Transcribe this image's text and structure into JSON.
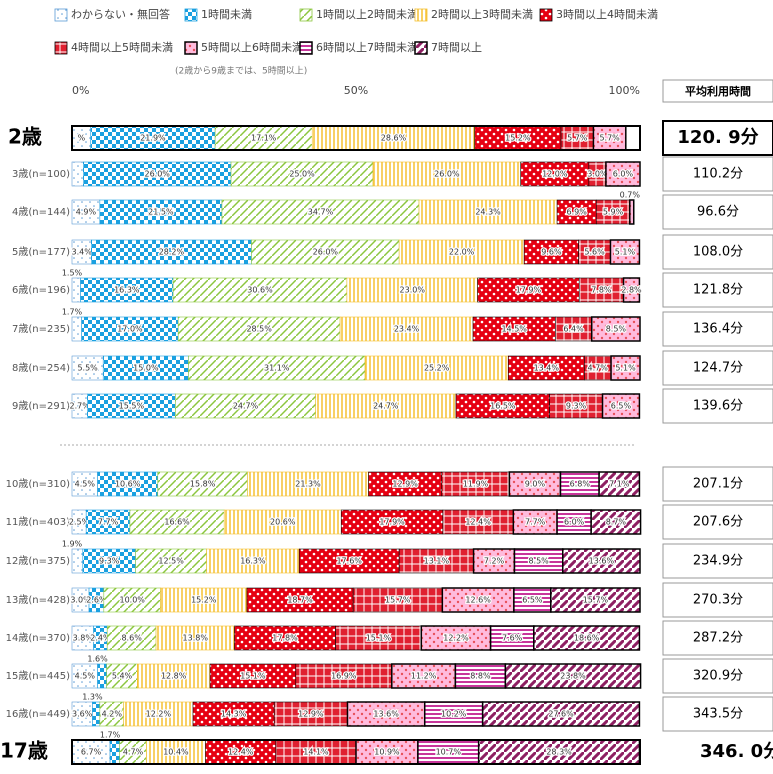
{
  "chart_data": {
    "type": "bar",
    "orientation": "horizontal",
    "stacked": true,
    "legend": [
      "わからない・無回答",
      "1時間未満",
      "1時間以上2時間未満",
      "2時間以上3時間未満",
      "3時間以上4時間未満",
      "4時間以上5時間未満",
      "5時間以上6時間未満",
      "6時間以上7時間未満",
      "7時間以上"
    ],
    "legend_note": "(2歳から9歳までは、5時間以上)",
    "xlim": [
      0,
      100
    ],
    "xticks": [
      {
        "value": 0,
        "label": "0%"
      },
      {
        "value": 50,
        "label": "50%"
      },
      {
        "value": 100,
        "label": "100%"
      }
    ],
    "average_header": "平均利用時間",
    "categories": [
      "2歳",
      "3歳(n=100)",
      "4歳(n=144)",
      "5歳(n=177)",
      "6歳(n=196)",
      "7歳(n=235)",
      "8歳(n=254)",
      "9歳(n=291)",
      "10歳(n=310)",
      "11歳(n=403)",
      "12歳(n=375)",
      "13歳(n=428)",
      "14歳(n=370)",
      "15歳(n=445)",
      "16歳(n=449)",
      "17歳"
    ],
    "averages": [
      "120. 9分",
      "110.2分",
      "96.6分",
      "108.0分",
      "121.8分",
      "136.4分",
      "124.7分",
      "139.6分",
      "207.1分",
      "207.6分",
      "234.9分",
      "270.3分",
      "287.2分",
      "320.9分",
      "343.5分",
      "346. 0分"
    ],
    "series": [
      {
        "name": "わからない・無回答",
        "color": "#5b9bd5",
        "values": [
          3.3,
          2.0,
          4.9,
          3.4,
          1.5,
          1.7,
          5.5,
          2.7,
          4.5,
          2.5,
          1.9,
          3.0,
          3.8,
          4.5,
          3.6,
          6.7
        ],
        "value_labels": [
          "%",
          null,
          "4.9%",
          "3.4%",
          "1.5%",
          "1.7%",
          "5.5%",
          "2.7%",
          "4.5%",
          "2.5%",
          "1.9%",
          "3.0%",
          "3.8%",
          "4.5%",
          "3.6%",
          "6.7%"
        ]
      },
      {
        "name": "1時間未満",
        "color": "#1aa0e0",
        "values": [
          21.9,
          26.0,
          21.5,
          28.2,
          16.3,
          17.0,
          15.0,
          15.5,
          10.6,
          7.7,
          9.3,
          2.6,
          2.4,
          1.6,
          1.3,
          1.7
        ],
        "value_labels": [
          "21.9%",
          "26.0%",
          "21.5%",
          "28.2%",
          "16.3%",
          "17.0%",
          "15.0%",
          "15.5%",
          "10.6%",
          "7.7%",
          "9.3%",
          "2.6%",
          "2.4%",
          "1.6%",
          "1.3%",
          "1.7%"
        ]
      },
      {
        "name": "1時間以上2時間未満",
        "color": "#8cc63f",
        "values": [
          17.1,
          25.0,
          34.7,
          26.0,
          30.6,
          28.5,
          31.1,
          24.7,
          15.8,
          16.6,
          12.5,
          10.0,
          8.6,
          5.4,
          4.2,
          4.7
        ],
        "value_labels": [
          "17.1%",
          "25.0%",
          "34.7%",
          "26.0%",
          "30.6%",
          "28.5%",
          "31.1%",
          "24.7%",
          "15.8%",
          "16.6%",
          "12.5%",
          "10.0%",
          "8.6%",
          "5.4%",
          "4.2%",
          "4.7%"
        ]
      },
      {
        "name": "2時間以上3時間未満",
        "color": "#f5c030",
        "values": [
          28.6,
          26.0,
          24.3,
          22.0,
          23.0,
          23.4,
          25.2,
          24.7,
          21.3,
          20.6,
          16.3,
          15.2,
          13.8,
          12.8,
          12.2,
          10.4
        ],
        "value_labels": [
          "28.6%",
          "26.0%",
          "24.3%",
          "22.0%",
          "23.0%",
          "23.4%",
          "25.2%",
          "24.7%",
          "21.3%",
          "20.6%",
          "16.3%",
          "15.2%",
          "13.8%",
          "12.8%",
          "12.2%",
          "10.4%"
        ]
      },
      {
        "name": "3時間以上4時間未満",
        "color": "#e60012",
        "values": [
          15.2,
          12.0,
          6.9,
          9.6,
          17.9,
          14.5,
          13.4,
          16.5,
          12.9,
          17.9,
          17.6,
          18.7,
          17.8,
          15.1,
          14.3,
          12.4
        ],
        "value_labels": [
          "15.2%",
          "12.0%",
          "6.9%",
          "9.6%",
          "17.9%",
          "14.5%",
          "13.4%",
          "16.5%",
          "12.9%",
          "17.9%",
          "17.6%",
          "18.7%",
          "17.8%",
          "15.1%",
          "14.3%",
          "12.4%"
        ]
      },
      {
        "name": "4時間以上5時間未満",
        "color": "#e02030",
        "values": [
          5.7,
          3.0,
          5.9,
          5.6,
          7.8,
          6.4,
          4.7,
          9.3,
          11.9,
          12.4,
          13.1,
          15.7,
          15.1,
          16.9,
          12.9,
          14.1
        ],
        "value_labels": [
          "5.7%",
          "3.0%",
          "5.9%",
          "5.6%",
          "7.8%",
          "6.4%",
          "4.7%",
          "9.3%",
          "11.9%",
          "12.4%",
          "13.1%",
          "15.7%",
          "15.1%",
          "16.9%",
          "12.9%",
          "14.1%"
        ]
      },
      {
        "name": "5時間以上6時間未満",
        "color": "#e8505a",
        "values": [
          5.7,
          6.0,
          0.7,
          5.1,
          2.8,
          8.5,
          5.1,
          6.5,
          9.0,
          7.7,
          7.2,
          12.6,
          12.2,
          11.2,
          13.6,
          10.9
        ],
        "value_labels": [
          "5.7%",
          "6.0%",
          "0.7%",
          "5.1%",
          "2.8%",
          "8.5%",
          "5.1%",
          "6.5%",
          "9.0%",
          "7.7%",
          "7.2%",
          "12.6%",
          "12.2%",
          "11.2%",
          "13.6%",
          "10.9%"
        ]
      },
      {
        "name": "6時間以上7時間未満",
        "color": "#c8359b",
        "values": [
          null,
          null,
          null,
          null,
          null,
          null,
          null,
          null,
          6.8,
          6.0,
          8.5,
          6.5,
          7.6,
          8.8,
          10.2,
          10.7
        ],
        "value_labels": [
          null,
          null,
          null,
          null,
          null,
          null,
          null,
          null,
          "6.8%",
          "6.0%",
          "8.5%",
          "6.5%",
          "7.6%",
          "8.8%",
          "10.2%",
          "10.7%"
        ]
      },
      {
        "name": "7時間以上",
        "color": "#8e1f62",
        "values": [
          null,
          null,
          null,
          null,
          null,
          null,
          null,
          null,
          7.1,
          8.7,
          13.6,
          15.7,
          18.6,
          23.8,
          27.6,
          28.3
        ],
        "value_labels": [
          null,
          null,
          null,
          null,
          null,
          null,
          null,
          null,
          "7.1%",
          "8.7%",
          "13.6%",
          "15.7%",
          "18.6%",
          "23.8%",
          "27.6%",
          "28.3%"
        ]
      }
    ]
  }
}
